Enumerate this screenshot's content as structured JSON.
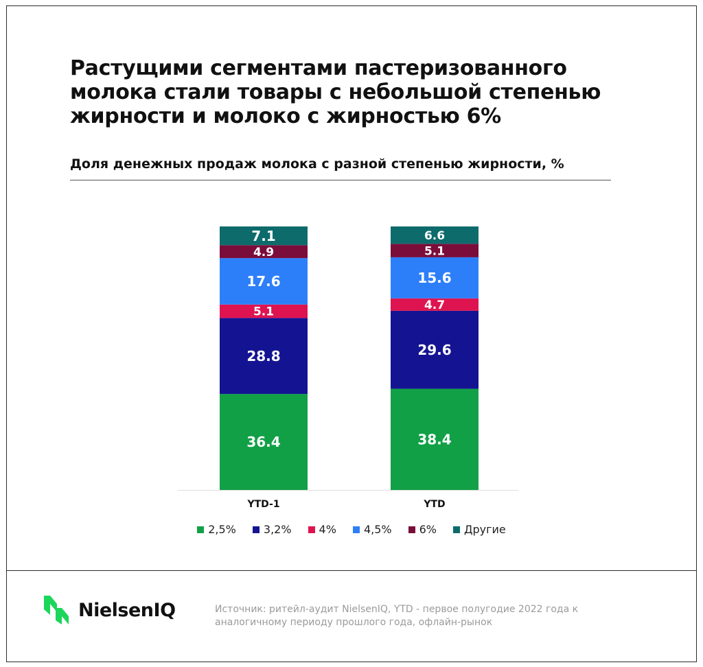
{
  "title": "Растущими сегментами пастеризованного молока стали товары с небольшой степенью жирности и молоко с жирностью 6%",
  "subtitle": "Доля денежных продаж молока с разной степенью жирности, %",
  "chart_data": {
    "type": "bar",
    "stacked": true,
    "categories": [
      "YTD-1",
      "YTD"
    ],
    "series": [
      {
        "name": "2,5%",
        "color": "#12a047",
        "values": [
          36.4,
          38.4
        ]
      },
      {
        "name": "3,2%",
        "color": "#141493",
        "values": [
          28.8,
          29.6
        ]
      },
      {
        "name": "4%",
        "color": "#de1450",
        "values": [
          5.1,
          4.7
        ]
      },
      {
        "name": "4,5%",
        "color": "#2d7ff9",
        "values": [
          17.6,
          15.6
        ]
      },
      {
        "name": "6%",
        "color": "#7b0d3a",
        "values": [
          4.9,
          5.1
        ]
      },
      {
        "name": "Другие",
        "color": "#0e6b6b",
        "values": [
          7.1,
          6.6
        ]
      }
    ],
    "legend_position": "bottom",
    "grid": false
  },
  "logo": {
    "text": "NielsenIQ",
    "icon": "nielseniq-logo-icon",
    "color": "#1bd65a"
  },
  "source": "Источник: ритейл-аудит NielsenIQ, YTD - первое полугодие 2022 года к аналогичному периоду прошлого года, офлайн-рынок"
}
